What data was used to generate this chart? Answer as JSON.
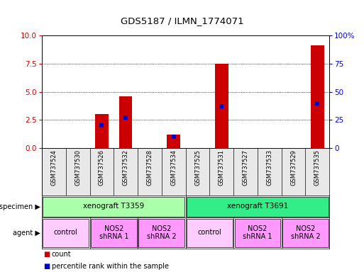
{
  "title": "GDS5187 / ILMN_1774071",
  "samples": [
    "GSM737524",
    "GSM737530",
    "GSM737526",
    "GSM737532",
    "GSM737528",
    "GSM737534",
    "GSM737525",
    "GSM737531",
    "GSM737527",
    "GSM737533",
    "GSM737529",
    "GSM737535"
  ],
  "count_values": [
    0,
    0,
    3.0,
    4.6,
    0,
    1.2,
    0,
    7.5,
    0,
    0,
    0,
    9.1
  ],
  "percentile_values": [
    0,
    0,
    20,
    27,
    0,
    10,
    0,
    37,
    0,
    0,
    0,
    40
  ],
  "ylim_left": [
    0,
    10
  ],
  "ylim_right": [
    0,
    100
  ],
  "yticks_left": [
    0,
    2.5,
    5,
    7.5,
    10
  ],
  "yticks_right": [
    0,
    25,
    50,
    75,
    100
  ],
  "bar_color": "#cc0000",
  "dot_color": "#0000cc",
  "grid_color": "#000000",
  "specimen_groups": [
    {
      "label": "xenograft T3359",
      "start": 0,
      "end": 6,
      "color": "#aaffaa"
    },
    {
      "label": "xenograft T3691",
      "start": 6,
      "end": 12,
      "color": "#33ee88"
    }
  ],
  "agent_groups": [
    {
      "label": "control",
      "start": 0,
      "end": 2,
      "color": "#ffccff"
    },
    {
      "label": "NOS2\nshRNA 1",
      "start": 2,
      "end": 4,
      "color": "#ff99ff"
    },
    {
      "label": "NOS2\nshRNA 2",
      "start": 4,
      "end": 6,
      "color": "#ff99ff"
    },
    {
      "label": "control",
      "start": 6,
      "end": 8,
      "color": "#ffccff"
    },
    {
      "label": "NOS2\nshRNA 1",
      "start": 8,
      "end": 10,
      "color": "#ff99ff"
    },
    {
      "label": "NOS2\nshRNA 2",
      "start": 10,
      "end": 12,
      "color": "#ff99ff"
    }
  ],
  "specimen_label": "specimen",
  "agent_label": "agent",
  "legend_count": "count",
  "legend_percentile": "percentile rank within the sample",
  "tick_label_color_left": "#cc0000",
  "tick_label_color_right": "#0000cc",
  "bg_color": "#ffffff",
  "spine_color": "#000000"
}
